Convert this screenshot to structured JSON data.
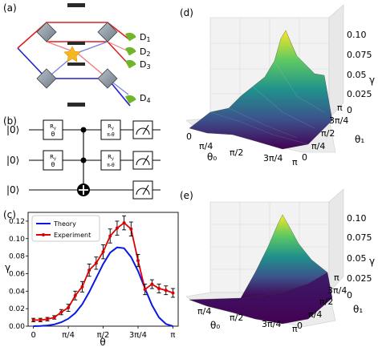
{
  "panels": {
    "a": {
      "label": "(a)",
      "detectors": [
        "D",
        "D",
        "D",
        "D"
      ],
      "detector_subscripts": [
        "1",
        "2",
        "3",
        "4"
      ]
    },
    "b": {
      "label": "(b)",
      "kets": [
        "|0⟩",
        "|0⟩",
        "|0⟩"
      ],
      "gates": [
        {
          "top": "R",
          "sub": "y",
          "bottom": "θ"
        },
        {
          "top": "R",
          "sub": "y",
          "bottom": "θ"
        },
        {
          "top": "R",
          "sub": "y",
          "bottom": "π-θ"
        },
        {
          "top": "R",
          "sub": "y",
          "bottom": "π-θ"
        }
      ]
    },
    "c": {
      "label": "(c)"
    },
    "d": {
      "label": "(d)",
      "zticks": [
        "0.10",
        "0.075",
        "0.05",
        "0.025",
        "0"
      ],
      "zlabel": "γ",
      "x_ticks": [
        "0",
        "π/4",
        "π/2",
        "3π/4",
        "π"
      ],
      "xlabel": "θ₀",
      "y_ticks": [
        "0",
        "π/4",
        "π/2",
        "3π/4",
        "π"
      ],
      "ylabel": "θ₁"
    },
    "e": {
      "label": "(e)",
      "zticks": [
        "0.10",
        "0.075",
        "0.05",
        "0.025",
        "0"
      ],
      "zlabel": "γ",
      "x_ticks": [
        "π/4",
        "π/2",
        "3π/4",
        "π"
      ],
      "xlabel": "θ₀",
      "y_ticks": [
        "0",
        "π/4",
        "π/2",
        "3π/4",
        "π"
      ],
      "ylabel": "θ₁"
    }
  },
  "chart_data": {
    "type": "line",
    "xlabel": "θ",
    "ylabel": "γ",
    "x_tick_labels": [
      "0",
      "π/4",
      "π/2",
      "3π/4",
      "π"
    ],
    "x_tick_values": [
      0,
      0.7854,
      1.5708,
      2.3562,
      3.1416
    ],
    "y_tick_labels": [
      "0.00",
      "0.02",
      "0.04",
      "0.06",
      "0.08",
      "0.10",
      "0.12"
    ],
    "ylim": [
      0,
      0.13
    ],
    "xlim": [
      -0.12,
      3.26
    ],
    "legend": "top-left",
    "series": [
      {
        "name": "Theory",
        "color": "#0a17e6",
        "x": [
          0,
          0.1571,
          0.3142,
          0.4712,
          0.6283,
          0.7854,
          0.9425,
          1.0996,
          1.2566,
          1.4137,
          1.5708,
          1.7279,
          1.885,
          2.042,
          2.1991,
          2.3562,
          2.5133,
          2.6704,
          2.8274,
          2.9845,
          3.1416
        ],
        "values": [
          0,
          0.0002,
          0.0008,
          0.002,
          0.0045,
          0.0085,
          0.015,
          0.025,
          0.039,
          0.055,
          0.071,
          0.084,
          0.09,
          0.089,
          0.079,
          0.063,
          0.043,
          0.024,
          0.01,
          0.0025,
          0
        ]
      },
      {
        "name": "Experiment",
        "color": "#e00000",
        "x": [
          0,
          0.1571,
          0.3142,
          0.4712,
          0.6283,
          0.7854,
          0.9425,
          1.0996,
          1.2566,
          1.4137,
          1.5708,
          1.7279,
          1.885,
          2.042,
          2.1991,
          2.3562,
          2.5133,
          2.6704,
          2.8274,
          2.9845,
          3.1416
        ],
        "values": [
          0.007,
          0.007,
          0.008,
          0.01,
          0.016,
          0.021,
          0.035,
          0.045,
          0.064,
          0.072,
          0.085,
          0.103,
          0.112,
          0.118,
          0.111,
          0.075,
          0.042,
          0.048,
          0.043,
          0.041,
          0.038
        ],
        "errors": [
          0.002,
          0.002,
          0.002,
          0.002,
          0.003,
          0.004,
          0.005,
          0.006,
          0.007,
          0.007,
          0.008,
          0.008,
          0.008,
          0.008,
          0.008,
          0.007,
          0.006,
          0.005,
          0.005,
          0.005,
          0.005
        ]
      }
    ]
  }
}
